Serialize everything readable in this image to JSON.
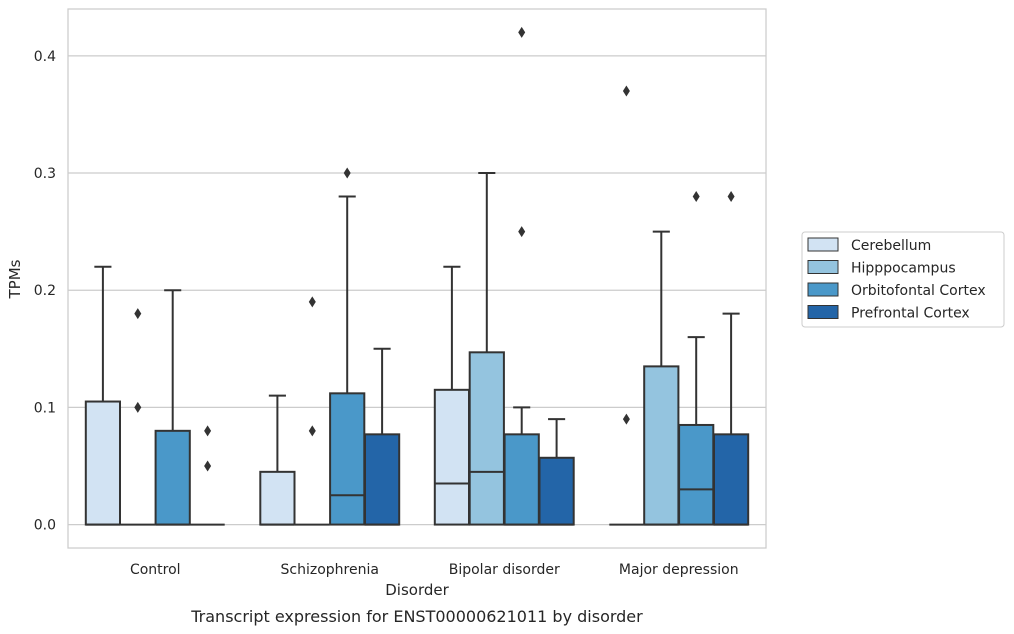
{
  "chart_data": {
    "type": "boxplot",
    "title": "",
    "caption": "Transcript expression for ENST00000621011 by disorder",
    "xlabel": "Disorder",
    "ylabel": "TPMs",
    "ylim": [
      -0.02,
      0.44
    ],
    "yticks": [
      0.0,
      0.1,
      0.2,
      0.3,
      0.4
    ],
    "ytick_labels": [
      "0.0",
      "0.1",
      "0.2",
      "0.3",
      "0.4"
    ],
    "grid": "horizontal",
    "legend_position": "right",
    "categories": [
      "Control",
      "Schizophrenia",
      "Bipolar disorder",
      "Major depression"
    ],
    "series": [
      {
        "name": "Cerebellum",
        "color": "#d2e3f3"
      },
      {
        "name": "Hipppocampus",
        "color": "#94c4df"
      },
      {
        "name": "Orbitofontal Cortex",
        "color": "#4a98c9"
      },
      {
        "name": "Prefrontal Cortex",
        "color": "#2365a8"
      }
    ],
    "boxes": [
      [
        {
          "q1": 0.0,
          "median": 0.0,
          "q3": 0.105,
          "whislo": 0.0,
          "whishi": 0.22,
          "fliers": []
        },
        {
          "q1": 0.0,
          "median": 0.0,
          "q3": 0.0,
          "whislo": 0.0,
          "whishi": 0.0,
          "fliers": [
            0.1,
            0.18
          ]
        },
        {
          "q1": 0.0,
          "median": 0.0,
          "q3": 0.08,
          "whislo": 0.0,
          "whishi": 0.2,
          "fliers": []
        },
        {
          "q1": 0.0,
          "median": 0.0,
          "q3": 0.0,
          "whislo": 0.0,
          "whishi": 0.0,
          "fliers": [
            0.05,
            0.08
          ]
        }
      ],
      [
        {
          "q1": 0.0,
          "median": 0.0,
          "q3": 0.045,
          "whislo": 0.0,
          "whishi": 0.11,
          "fliers": []
        },
        {
          "q1": 0.0,
          "median": 0.0,
          "q3": 0.0,
          "whislo": 0.0,
          "whishi": 0.0,
          "fliers": [
            0.08,
            0.19
          ]
        },
        {
          "q1": 0.0,
          "median": 0.025,
          "q3": 0.112,
          "whislo": 0.0,
          "whishi": 0.28,
          "fliers": [
            0.3
          ]
        },
        {
          "q1": 0.0,
          "median": 0.0,
          "q3": 0.077,
          "whislo": 0.0,
          "whishi": 0.15,
          "fliers": []
        }
      ],
      [
        {
          "q1": 0.0,
          "median": 0.035,
          "q3": 0.115,
          "whislo": 0.0,
          "whishi": 0.22,
          "fliers": []
        },
        {
          "q1": 0.0,
          "median": 0.045,
          "q3": 0.147,
          "whislo": 0.0,
          "whishi": 0.3,
          "fliers": []
        },
        {
          "q1": 0.0,
          "median": 0.0,
          "q3": 0.077,
          "whislo": 0.0,
          "whishi": 0.1,
          "fliers": [
            0.25,
            0.42
          ]
        },
        {
          "q1": 0.0,
          "median": 0.0,
          "q3": 0.057,
          "whislo": 0.0,
          "whishi": 0.09,
          "fliers": []
        }
      ],
      [
        {
          "q1": 0.0,
          "median": 0.0,
          "q3": 0.0,
          "whislo": 0.0,
          "whishi": 0.0,
          "fliers": [
            0.09,
            0.37
          ]
        },
        {
          "q1": 0.0,
          "median": 0.0,
          "q3": 0.135,
          "whislo": 0.0,
          "whishi": 0.25,
          "fliers": []
        },
        {
          "q1": 0.0,
          "median": 0.03,
          "q3": 0.085,
          "whislo": 0.0,
          "whishi": 0.16,
          "fliers": [
            0.28
          ]
        },
        {
          "q1": 0.0,
          "median": 0.0,
          "q3": 0.077,
          "whislo": 0.0,
          "whishi": 0.18,
          "fliers": [
            0.28
          ]
        }
      ]
    ]
  }
}
